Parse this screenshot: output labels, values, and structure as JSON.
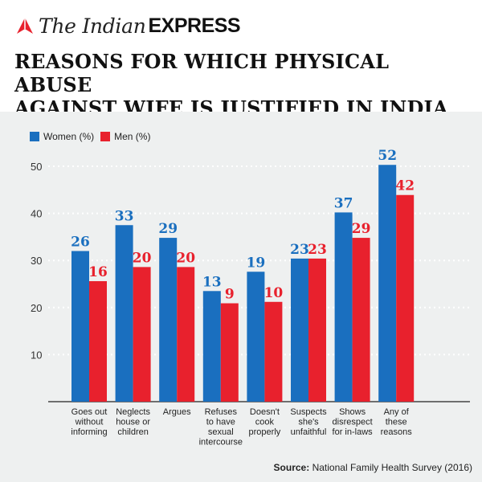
{
  "header": {
    "logo_the": "The Indian",
    "logo_express": "EXPRESS",
    "logo_icon": "pen-nib-icon",
    "title_line1": "REASONS FOR WHICH PHYSICAL ABUSE",
    "title_line2": "AGAINST WIFE IS JUSTIFIED IN INDIA"
  },
  "colors": {
    "women": "#1a6fbf",
    "men": "#e8212d",
    "panel": "#eef0f0",
    "logo_red": "#e8212d"
  },
  "footer": {
    "source_label": "Source:",
    "source_text": "National Family Health Survey (2016)"
  },
  "chart_data": {
    "type": "bar",
    "title": "REASONS FOR WHICH PHYSICAL ABUSE AGAINST WIFE IS JUSTIFIED IN INDIA",
    "xlabel": "",
    "ylabel": "",
    "ylim": [
      0,
      52
    ],
    "yticks": [
      "10",
      "20",
      "30",
      "40",
      "50"
    ],
    "grid": true,
    "legend": "top-left",
    "categories": [
      [
        "Goes out",
        "without",
        "informing"
      ],
      [
        "Neglects",
        "house or",
        "children"
      ],
      [
        "Argues"
      ],
      [
        "Refuses",
        "to have",
        "sexual",
        "intercourse"
      ],
      [
        "Doesn't",
        "cook",
        "properly"
      ],
      [
        "Suspects",
        "she's",
        "unfaithful"
      ],
      [
        "Shows",
        "disrespect",
        "for in-laws"
      ],
      [
        "Any of",
        "these",
        "reasons"
      ]
    ],
    "series": [
      {
        "name": "Women (%)",
        "values": [
          26,
          33,
          29,
          13,
          19,
          23,
          37,
          52
        ]
      },
      {
        "name": "Men (%)",
        "values": [
          16,
          20,
          20,
          9,
          10,
          23,
          29,
          42
        ]
      }
    ],
    "bar_value_positions": [
      [
        32,
        25.6
      ],
      [
        37.5,
        28.6
      ],
      [
        34.8,
        28.6
      ],
      [
        23.5,
        20.9
      ],
      [
        27.6,
        21.2
      ],
      [
        30.4,
        30.4
      ],
      [
        40.2,
        34.8
      ],
      [
        50.3,
        43.9
      ]
    ]
  }
}
